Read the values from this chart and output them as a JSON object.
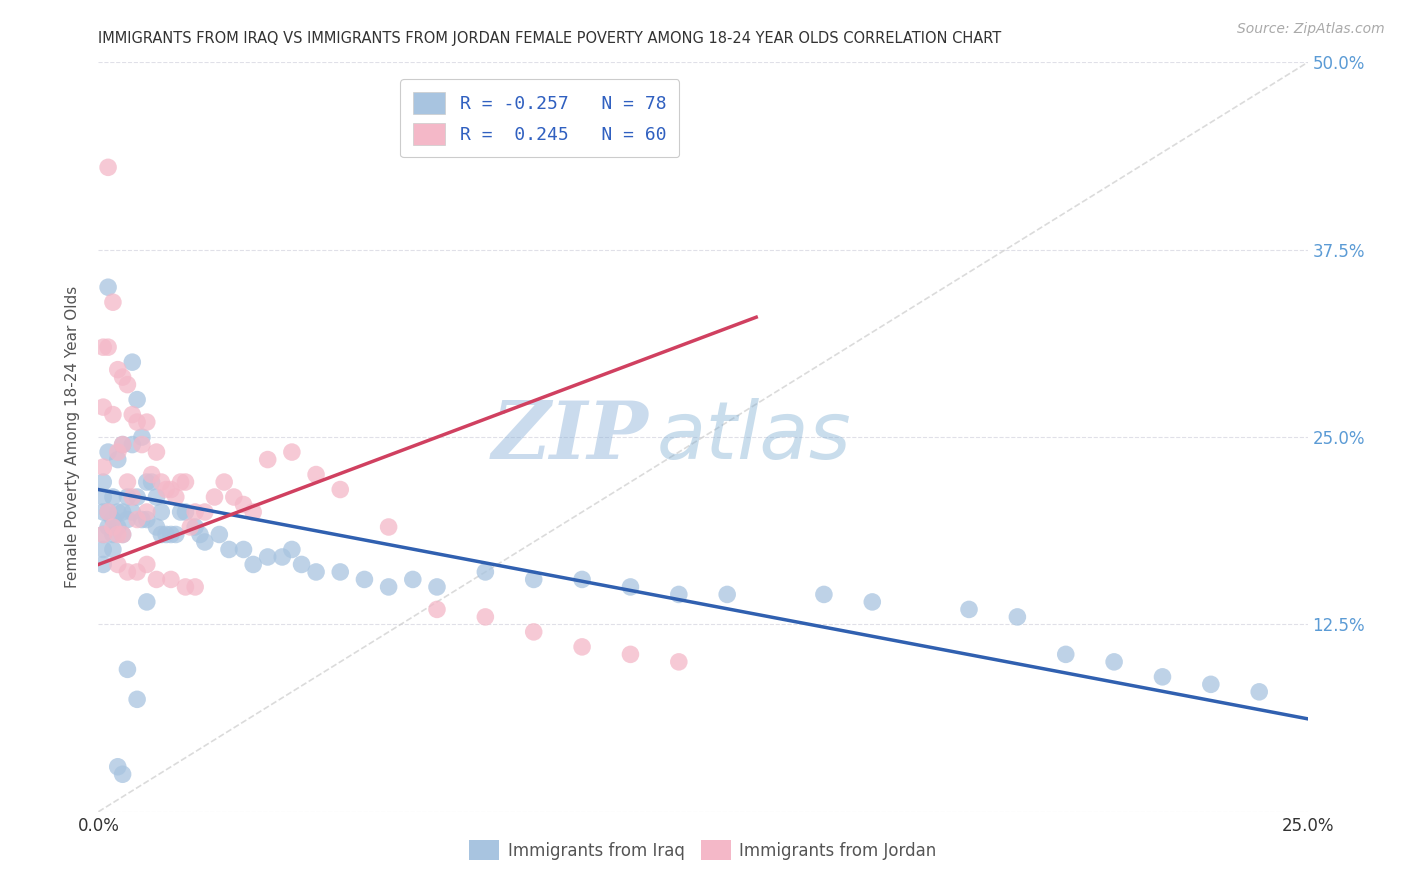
{
  "title": "IMMIGRANTS FROM IRAQ VS IMMIGRANTS FROM JORDAN FEMALE POVERTY AMONG 18-24 YEAR OLDS CORRELATION CHART",
  "source": "Source: ZipAtlas.com",
  "ylabel_label": "Female Poverty Among 18-24 Year Olds",
  "x_ticks": [
    0.0,
    0.05,
    0.1,
    0.15,
    0.2,
    0.25
  ],
  "x_tick_labels": [
    "0.0%",
    "",
    "",
    "",
    "",
    "25.0%"
  ],
  "y_ticks": [
    0.0,
    0.125,
    0.25,
    0.375,
    0.5
  ],
  "y_tick_labels_right": [
    "",
    "12.5%",
    "25.0%",
    "37.5%",
    "50.0%"
  ],
  "xlim": [
    0.0,
    0.25
  ],
  "ylim": [
    0.0,
    0.5
  ],
  "iraq_color": "#a8c4e0",
  "jordan_color": "#f4b8c8",
  "iraq_line_color": "#3060b0",
  "jordan_line_color": "#d04060",
  "diag_line_color": "#cccccc",
  "legend_iraq_label": "Immigrants from Iraq",
  "legend_jordan_label": "Immigrants from Jordan",
  "iraq_R": -0.257,
  "iraq_N": 78,
  "jordan_R": 0.245,
  "jordan_N": 60,
  "iraq_line_x0": 0.0,
  "iraq_line_x1": 0.25,
  "iraq_line_y0": 0.215,
  "iraq_line_y1": 0.062,
  "jordan_line_x0": 0.0,
  "jordan_line_x1": 0.136,
  "jordan_line_y0": 0.165,
  "jordan_line_y1": 0.33,
  "iraq_scatter_x": [
    0.001,
    0.001,
    0.001,
    0.001,
    0.001,
    0.001,
    0.002,
    0.002,
    0.002,
    0.002,
    0.003,
    0.003,
    0.003,
    0.003,
    0.004,
    0.004,
    0.004,
    0.005,
    0.005,
    0.005,
    0.006,
    0.006,
    0.007,
    0.007,
    0.007,
    0.008,
    0.008,
    0.009,
    0.009,
    0.01,
    0.01,
    0.011,
    0.012,
    0.012,
    0.013,
    0.013,
    0.014,
    0.015,
    0.016,
    0.017,
    0.018,
    0.02,
    0.021,
    0.022,
    0.025,
    0.027,
    0.03,
    0.032,
    0.035,
    0.038,
    0.04,
    0.042,
    0.045,
    0.05,
    0.055,
    0.06,
    0.065,
    0.07,
    0.08,
    0.09,
    0.1,
    0.11,
    0.12,
    0.13,
    0.15,
    0.16,
    0.18,
    0.19,
    0.2,
    0.21,
    0.22,
    0.23,
    0.24,
    0.004,
    0.005,
    0.006,
    0.008,
    0.01
  ],
  "iraq_scatter_y": [
    0.22,
    0.21,
    0.2,
    0.185,
    0.175,
    0.165,
    0.35,
    0.24,
    0.2,
    0.19,
    0.21,
    0.195,
    0.185,
    0.175,
    0.235,
    0.2,
    0.19,
    0.245,
    0.2,
    0.185,
    0.21,
    0.195,
    0.3,
    0.245,
    0.2,
    0.275,
    0.21,
    0.25,
    0.195,
    0.22,
    0.195,
    0.22,
    0.21,
    0.19,
    0.2,
    0.185,
    0.185,
    0.185,
    0.185,
    0.2,
    0.2,
    0.19,
    0.185,
    0.18,
    0.185,
    0.175,
    0.175,
    0.165,
    0.17,
    0.17,
    0.175,
    0.165,
    0.16,
    0.16,
    0.155,
    0.15,
    0.155,
    0.15,
    0.16,
    0.155,
    0.155,
    0.15,
    0.145,
    0.145,
    0.145,
    0.14,
    0.135,
    0.13,
    0.105,
    0.1,
    0.09,
    0.085,
    0.08,
    0.03,
    0.025,
    0.095,
    0.075,
    0.14
  ],
  "jordan_scatter_x": [
    0.001,
    0.001,
    0.001,
    0.001,
    0.002,
    0.002,
    0.002,
    0.003,
    0.003,
    0.003,
    0.004,
    0.004,
    0.004,
    0.005,
    0.005,
    0.005,
    0.006,
    0.006,
    0.007,
    0.007,
    0.008,
    0.008,
    0.009,
    0.01,
    0.01,
    0.011,
    0.012,
    0.013,
    0.014,
    0.015,
    0.016,
    0.017,
    0.018,
    0.019,
    0.02,
    0.022,
    0.024,
    0.026,
    0.028,
    0.03,
    0.032,
    0.035,
    0.04,
    0.045,
    0.05,
    0.06,
    0.07,
    0.08,
    0.09,
    0.1,
    0.11,
    0.12,
    0.004,
    0.006,
    0.008,
    0.01,
    0.012,
    0.015,
    0.018,
    0.02
  ],
  "jordan_scatter_y": [
    0.31,
    0.27,
    0.23,
    0.185,
    0.43,
    0.31,
    0.2,
    0.34,
    0.265,
    0.19,
    0.295,
    0.24,
    0.185,
    0.29,
    0.245,
    0.185,
    0.285,
    0.22,
    0.265,
    0.21,
    0.26,
    0.195,
    0.245,
    0.26,
    0.2,
    0.225,
    0.24,
    0.22,
    0.215,
    0.215,
    0.21,
    0.22,
    0.22,
    0.19,
    0.2,
    0.2,
    0.21,
    0.22,
    0.21,
    0.205,
    0.2,
    0.235,
    0.24,
    0.225,
    0.215,
    0.19,
    0.135,
    0.13,
    0.12,
    0.11,
    0.105,
    0.1,
    0.165,
    0.16,
    0.16,
    0.165,
    0.155,
    0.155,
    0.15,
    0.15
  ],
  "watermark_zip": "ZIP",
  "watermark_atlas": "atlas",
  "background_color": "#ffffff",
  "grid_color": "#e0e0e8"
}
